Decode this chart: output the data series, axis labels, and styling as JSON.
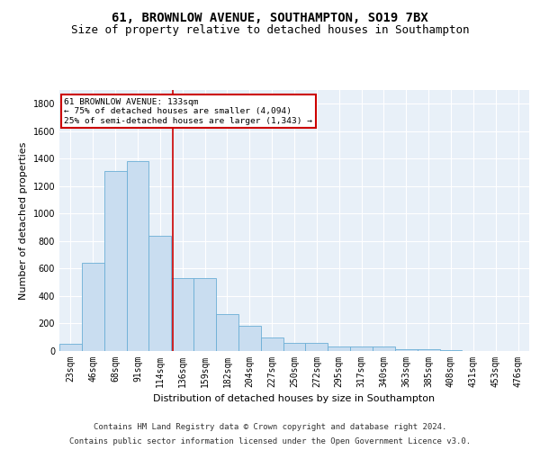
{
  "title": "61, BROWNLOW AVENUE, SOUTHAMPTON, SO19 7BX",
  "subtitle": "Size of property relative to detached houses in Southampton",
  "xlabel": "Distribution of detached houses by size in Southampton",
  "ylabel": "Number of detached properties",
  "categories": [
    "23sqm",
    "46sqm",
    "68sqm",
    "91sqm",
    "114sqm",
    "136sqm",
    "159sqm",
    "182sqm",
    "204sqm",
    "227sqm",
    "250sqm",
    "272sqm",
    "295sqm",
    "317sqm",
    "340sqm",
    "363sqm",
    "385sqm",
    "408sqm",
    "431sqm",
    "453sqm",
    "476sqm"
  ],
  "values": [
    50,
    640,
    1310,
    1380,
    840,
    530,
    530,
    270,
    185,
    100,
    60,
    60,
    30,
    30,
    30,
    15,
    15,
    5,
    3,
    2,
    2
  ],
  "bar_color": "#c9ddf0",
  "bar_edge_color": "#6baed6",
  "vline_color": "#cc0000",
  "ylim": [
    0,
    1900
  ],
  "yticks": [
    0,
    200,
    400,
    600,
    800,
    1000,
    1200,
    1400,
    1600,
    1800
  ],
  "annotation_text": "61 BROWNLOW AVENUE: 133sqm\n← 75% of detached houses are smaller (4,094)\n25% of semi-detached houses are larger (1,343) →",
  "annotation_box_color": "#ffffff",
  "annotation_box_edge": "#cc0000",
  "footnote1": "Contains HM Land Registry data © Crown copyright and database right 2024.",
  "footnote2": "Contains public sector information licensed under the Open Government Licence v3.0.",
  "background_color": "#e8f0f8",
  "grid_color": "#ffffff",
  "title_fontsize": 10,
  "subtitle_fontsize": 9,
  "tick_fontsize": 7,
  "label_fontsize": 8,
  "footnote_fontsize": 6.5,
  "vline_pos": 4.55
}
